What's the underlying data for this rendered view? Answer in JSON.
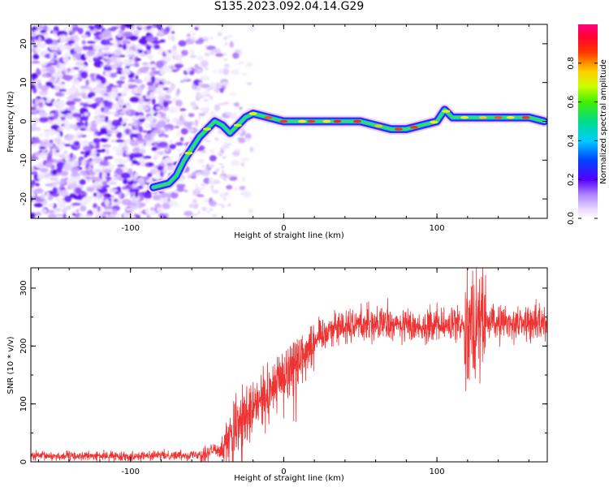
{
  "title": "S135.2023.092.04.14.G29",
  "chart_data": [
    {
      "type": "heatmap",
      "name": "spectrogram",
      "title": "S135.2023.092.04.14.G29",
      "xlabel": "Height of straight line (km)",
      "ylabel": "Frequency (Hz)",
      "xlim": [
        -165,
        172
      ],
      "ylim": [
        -25,
        25
      ],
      "xticks": [
        -100,
        0,
        100
      ],
      "xtick_labels": [
        "-100",
        "0",
        "100"
      ],
      "yticks": [
        -20,
        -10,
        0,
        10,
        20
      ],
      "ytick_labels": [
        "-20",
        "-10",
        "0",
        "10",
        "20"
      ],
      "ridge": {
        "x": [
          -85,
          -75,
          -70,
          -65,
          -60,
          -55,
          -50,
          -45,
          -40,
          -35,
          -30,
          -25,
          -20,
          -15,
          -10,
          0,
          10,
          20,
          30,
          40,
          50,
          60,
          70,
          80,
          90,
          100,
          105,
          110,
          120,
          140,
          160,
          170
        ],
        "y": [
          -17,
          -16,
          -14,
          -10,
          -7,
          -4,
          -2,
          0,
          -1,
          -3,
          -1,
          1,
          2,
          1.5,
          1,
          0,
          0,
          0,
          0,
          0,
          0,
          -1,
          -2,
          -2,
          -1,
          0,
          3,
          1,
          1,
          1,
          1,
          0
        ]
      },
      "colorbar": {
        "label": "Normalized spectral amplitude",
        "range": [
          0.0,
          1.0
        ],
        "ticks": [
          0.0,
          0.2,
          0.4,
          0.6,
          0.8
        ],
        "tick_labels": [
          "0.0",
          "0.2",
          "0.4",
          "0.6",
          "0.8"
        ]
      }
    },
    {
      "type": "line",
      "name": "snr",
      "xlabel": "Height of straight line (km)",
      "ylabel": "SNR (10 * v/v)",
      "xlim": [
        -165,
        172
      ],
      "ylim": [
        0,
        335
      ],
      "xticks": [
        -100,
        0,
        100
      ],
      "xtick_labels": [
        "-100",
        "0",
        "100"
      ],
      "yticks": [
        0,
        100,
        200,
        300
      ],
      "ytick_labels": [
        "0",
        "100",
        "200",
        "300"
      ],
      "color": "#ee3333",
      "trend_x": [
        -165,
        -100,
        -60,
        -50,
        -40,
        -30,
        -20,
        -10,
        0,
        10,
        20,
        30,
        50,
        80,
        110,
        125,
        140,
        172
      ],
      "trend_y": [
        10,
        10,
        12,
        15,
        25,
        60,
        90,
        120,
        150,
        180,
        210,
        230,
        240,
        235,
        235,
        245,
        240,
        240
      ]
    }
  ]
}
